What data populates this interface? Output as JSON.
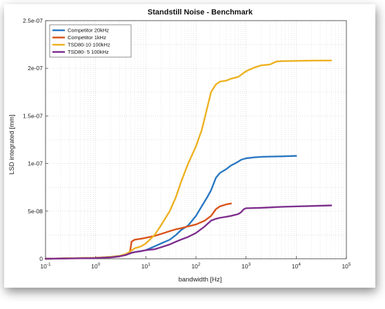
{
  "chart_data": {
    "type": "line",
    "title": "Standstill Noise - Benchmark",
    "xlabel": "bandwidth [Hz]",
    "ylabel": "LSD integrated [mm]",
    "xscale": "log",
    "xlim": [
      0.1,
      100000
    ],
    "ylim": [
      0,
      2.5e-07
    ],
    "grid": true,
    "legend": "top-left",
    "x_ticks": [
      {
        "base": "10",
        "exp": "-1"
      },
      {
        "base": "10",
        "exp": "0"
      },
      {
        "base": "10",
        "exp": "1"
      },
      {
        "base": "10",
        "exp": "2"
      },
      {
        "base": "10",
        "exp": "3"
      },
      {
        "base": "10",
        "exp": "4"
      },
      {
        "base": "10",
        "exp": "5"
      }
    ],
    "y_ticks": [
      "0",
      "5e-08",
      "1e-07",
      "1.5e-07",
      "2e-07",
      "2.5e-07"
    ],
    "series": [
      {
        "name": "Competitor 20kHz",
        "color": "#2a78c2",
        "x": [
          0.1,
          0.3,
          1,
          2,
          3,
          4,
          5,
          6,
          8,
          10,
          15,
          20,
          30,
          40,
          50,
          70,
          100,
          130,
          170,
          200,
          250,
          300,
          400,
          500,
          600,
          700,
          800,
          1000,
          1500,
          2000,
          5000,
          10000
        ],
        "y": [
          0,
          5e-10,
          1e-09,
          2e-09,
          3e-09,
          4e-09,
          6e-09,
          7e-09,
          8e-09,
          9e-09,
          1.3e-08,
          1.6e-08,
          2e-08,
          2.5e-08,
          3e-08,
          3.5e-08,
          4.5e-08,
          5.5e-08,
          6.5e-08,
          7.2e-08,
          8.5e-08,
          9e-08,
          9.4e-08,
          9.8e-08,
          1e-07,
          1.02e-07,
          1.04e-07,
          1.055e-07,
          1.065e-07,
          1.07e-07,
          1.075e-07,
          1.08e-07
        ]
      },
      {
        "name": "Competitor  1kHz",
        "color": "#d95319",
        "x": [
          0.1,
          0.3,
          1,
          2,
          3,
          4,
          4.8,
          5.2,
          6,
          8,
          10,
          15,
          20,
          30,
          40,
          50,
          70,
          100,
          150,
          200,
          250,
          300,
          400,
          500
        ],
        "y": [
          0,
          5e-10,
          1e-09,
          1.5e-09,
          2.5e-09,
          4e-09,
          6e-09,
          1.8e-08,
          2e-08,
          2.1e-08,
          2.2e-08,
          2.4e-08,
          2.6e-08,
          2.9e-08,
          3.1e-08,
          3.2e-08,
          3.4e-08,
          3.6e-08,
          4e-08,
          4.5e-08,
          5.2e-08,
          5.5e-08,
          5.7e-08,
          5.8e-08
        ]
      },
      {
        "name": "TSD80-10 100kHz",
        "color": "#edb120",
        "x": [
          0.1,
          0.3,
          1,
          2,
          3,
          4,
          5,
          6,
          8,
          10,
          15,
          20,
          30,
          40,
          50,
          70,
          100,
          130,
          150,
          180,
          200,
          250,
          300,
          400,
          500,
          700,
          1000,
          1500,
          2000,
          3000,
          4000,
          5000,
          10000,
          20000,
          50000
        ],
        "y": [
          0,
          5e-10,
          1e-09,
          2e-09,
          3e-09,
          5e-09,
          8e-09,
          1.1e-08,
          1.3e-08,
          1.6e-08,
          2.5e-08,
          3.5e-08,
          5e-08,
          6.5e-08,
          8e-08,
          1e-07,
          1.18e-07,
          1.35e-07,
          1.48e-07,
          1.65e-07,
          1.75e-07,
          1.83e-07,
          1.86e-07,
          1.87e-07,
          1.89e-07,
          1.91e-07,
          1.97e-07,
          2.01e-07,
          2.03e-07,
          2.04e-07,
          2.07e-07,
          2.075e-07,
          2.078e-07,
          2.08e-07,
          2.082e-07
        ]
      },
      {
        "name": "TSD80- 5 100kHz",
        "color": "#7e2f8e",
        "x": [
          0.1,
          0.3,
          1,
          2,
          3,
          4,
          5,
          6,
          8,
          10,
          15,
          20,
          30,
          40,
          50,
          70,
          100,
          150,
          200,
          250,
          300,
          400,
          500,
          600,
          700,
          800,
          900,
          1000,
          2000,
          5000,
          10000,
          50000
        ],
        "y": [
          0,
          3e-10,
          7e-10,
          1.5e-09,
          2.5e-09,
          4e-09,
          6e-09,
          7e-09,
          8e-09,
          9e-09,
          1e-08,
          1.2e-08,
          1.5e-08,
          1.8e-08,
          2e-08,
          2.3e-08,
          2.7e-08,
          3.4e-08,
          4e-08,
          4.2e-08,
          4.3e-08,
          4.4e-08,
          4.5e-08,
          4.6e-08,
          4.7e-08,
          4.9e-08,
          5.2e-08,
          5.3e-08,
          5.35e-08,
          5.45e-08,
          5.5e-08,
          5.6e-08
        ]
      }
    ]
  }
}
